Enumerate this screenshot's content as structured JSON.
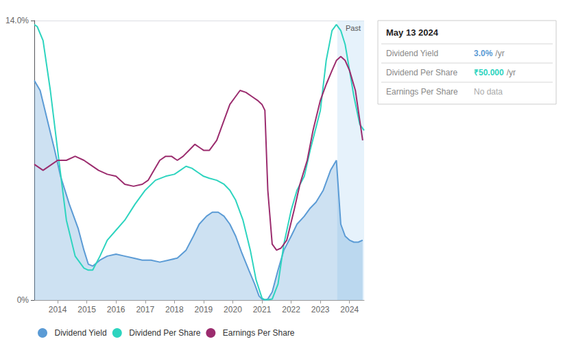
{
  "chart_data": {
    "type": "line",
    "series": [
      {
        "name": "Dividend Yield",
        "type": "area",
        "color": "#5b9bd5",
        "x": [
          2013.2,
          2013.4,
          2013.65,
          2013.9,
          2014.1,
          2014.4,
          2014.7,
          2014.9,
          2015.05,
          2015.2,
          2015.45,
          2015.7,
          2016.0,
          2016.3,
          2016.6,
          2016.9,
          2017.2,
          2017.5,
          2017.8,
          2018.1,
          2018.4,
          2018.65,
          2018.85,
          2019.1,
          2019.3,
          2019.5,
          2019.7,
          2019.9,
          2020.1,
          2020.3,
          2020.55,
          2020.75,
          2020.9,
          2021.0,
          2021.05,
          2021.1,
          2021.2,
          2021.35,
          2021.55,
          2021.75,
          2022.0,
          2022.2,
          2022.45,
          2022.65,
          2022.85,
          2023.1,
          2023.35,
          2023.55,
          2023.7,
          2023.85,
          2024.0,
          2024.15,
          2024.3,
          2024.45
        ],
        "values": [
          11.0,
          10.5,
          9.0,
          7.5,
          6.2,
          4.8,
          3.6,
          2.5,
          1.8,
          1.7,
          2.0,
          2.2,
          2.3,
          2.2,
          2.1,
          2.0,
          2.0,
          1.9,
          2.0,
          2.1,
          2.5,
          3.2,
          3.8,
          4.2,
          4.4,
          4.4,
          4.2,
          3.8,
          3.2,
          2.4,
          1.5,
          0.8,
          0.2,
          0.05,
          0.02,
          0.01,
          0.05,
          0.4,
          1.5,
          2.5,
          3.2,
          3.8,
          4.2,
          4.6,
          4.9,
          5.5,
          6.5,
          7.0,
          3.8,
          3.2,
          3.0,
          2.9,
          2.9,
          3.0
        ]
      },
      {
        "name": "Dividend Per Share",
        "type": "line",
        "color": "#2dd4bf",
        "x": [
          2013.2,
          2013.3,
          2013.5,
          2013.75,
          2014.0,
          2014.3,
          2014.6,
          2014.9,
          2015.05,
          2015.2,
          2015.45,
          2015.7,
          2016.0,
          2016.3,
          2016.65,
          2017.0,
          2017.35,
          2017.7,
          2018.0,
          2018.2,
          2018.4,
          2018.6,
          2018.8,
          2019.0,
          2019.2,
          2019.45,
          2019.7,
          2019.9,
          2020.1,
          2020.35,
          2020.6,
          2020.8,
          2021.0,
          2021.05,
          2021.1,
          2021.2,
          2021.35,
          2021.55,
          2021.75,
          2022.0,
          2022.2,
          2022.45,
          2022.65,
          2023.0,
          2023.2,
          2023.4,
          2023.55,
          2023.7,
          2023.85,
          2024.0,
          2024.15,
          2024.35,
          2024.5
        ],
        "values": [
          13.8,
          13.7,
          13.0,
          10.5,
          7.5,
          4.0,
          2.2,
          1.6,
          1.5,
          1.5,
          2.2,
          3.0,
          3.5,
          4.0,
          4.8,
          5.5,
          6.0,
          6.2,
          6.3,
          6.5,
          6.7,
          6.6,
          6.4,
          6.2,
          6.1,
          6.0,
          5.8,
          5.5,
          5.0,
          4.0,
          2.5,
          1.0,
          0.1,
          0.05,
          0.02,
          0.02,
          0.05,
          0.8,
          2.8,
          4.5,
          5.5,
          6.2,
          7.5,
          9.5,
          12.0,
          13.5,
          13.8,
          13.5,
          12.8,
          11.5,
          10.2,
          8.8,
          8.5
        ]
      },
      {
        "name": "Earnings Per Share",
        "type": "line",
        "color": "#9b2c6e",
        "x": [
          2013.2,
          2013.5,
          2013.8,
          2014.0,
          2014.3,
          2014.6,
          2014.9,
          2015.1,
          2015.4,
          2015.7,
          2016.0,
          2016.3,
          2016.6,
          2016.9,
          2017.1,
          2017.3,
          2017.5,
          2017.7,
          2017.9,
          2018.1,
          2018.3,
          2018.5,
          2018.7,
          2018.9,
          2019.0,
          2019.2,
          2019.45,
          2019.7,
          2019.9,
          2020.1,
          2020.25,
          2020.45,
          2020.65,
          2020.85,
          2021.0,
          2021.1,
          2021.2,
          2021.35,
          2021.5,
          2021.65,
          2021.85,
          2022.1,
          2022.3,
          2022.55,
          2022.75,
          2023.0,
          2023.2,
          2023.4,
          2023.55,
          2023.7,
          2023.85,
          2024.0,
          2024.2,
          2024.45
        ],
        "values": [
          6.8,
          6.5,
          6.8,
          7.0,
          7.0,
          7.2,
          7.0,
          6.8,
          6.5,
          6.3,
          6.2,
          5.8,
          5.7,
          5.8,
          6.0,
          6.5,
          7.0,
          7.2,
          7.2,
          7.0,
          7.2,
          7.5,
          7.8,
          7.6,
          7.5,
          7.5,
          8.0,
          9.0,
          9.8,
          10.2,
          10.5,
          10.4,
          10.2,
          10.0,
          9.8,
          9.5,
          5.5,
          2.8,
          2.5,
          2.6,
          3.0,
          4.5,
          5.8,
          7.0,
          8.5,
          10.0,
          10.8,
          11.5,
          12.0,
          12.2,
          12.0,
          11.5,
          10.5,
          8.0
        ]
      }
    ],
    "xlim": [
      2013.2,
      2024.5
    ],
    "xticks": [
      2014,
      2015,
      2016,
      2017,
      2018,
      2019,
      2020,
      2021,
      2022,
      2023,
      2024
    ],
    "ylim": [
      0,
      14
    ],
    "yticks": [
      {
        "value": 0,
        "label": "0%"
      },
      {
        "value": 14,
        "label": "14.0%"
      }
    ],
    "grid": true,
    "legend": "bottom left",
    "annotations": [
      {
        "text": "Past",
        "xlim": [
          2023.58,
          2024.5
        ]
      },
      {
        "text": "May 13 2024",
        "rows": [
          {
            "label": "Dividend Yield",
            "value": "3.0%",
            "suffix": "/yr",
            "color": "#5b9bd5"
          },
          {
            "label": "Dividend Per Share",
            "value": "₹50.000",
            "suffix": "/yr",
            "color": "#2dd4bf"
          },
          {
            "label": "Earnings Per Share",
            "value": "No data",
            "color": "#aaaaaa"
          }
        ]
      }
    ]
  }
}
